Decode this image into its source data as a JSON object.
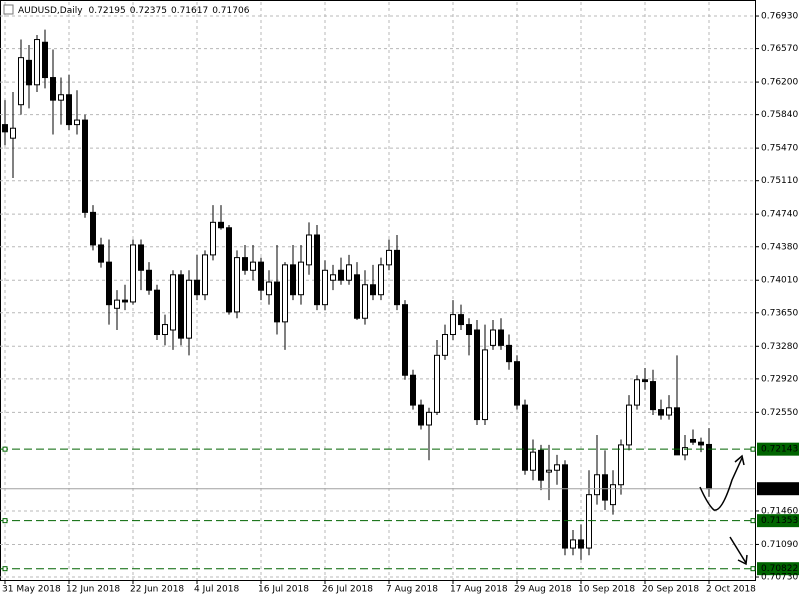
{
  "chart_data": {
    "type": "candlestick",
    "title": "AUDUSD,Daily",
    "categories": [
      "31 May 2018",
      null,
      null,
      null,
      null,
      null,
      null,
      null,
      "12 Jun 2018",
      null,
      null,
      null,
      null,
      null,
      null,
      null,
      "22 Jun 2018",
      null,
      null,
      null,
      null,
      null,
      null,
      null,
      "4 Jul 2018",
      null,
      null,
      null,
      null,
      null,
      null,
      null,
      "16 Jul 2018",
      null,
      null,
      null,
      null,
      null,
      null,
      null,
      "26 Jul 2018",
      null,
      null,
      null,
      null,
      null,
      null,
      null,
      "7 Aug 2018",
      null,
      null,
      null,
      null,
      null,
      null,
      null,
      "17 Aug 2018",
      null,
      null,
      null,
      null,
      null,
      null,
      null,
      "29 Aug 2018",
      null,
      null,
      null,
      null,
      null,
      null,
      null,
      "10 Sep 2018",
      null,
      null,
      null,
      null,
      null,
      null,
      null,
      "20 Sep 2018",
      null,
      null,
      null,
      null,
      null,
      null,
      null,
      "2 Oct 2018"
    ],
    "open": [
      0.7573,
      0.7558,
      0.7595,
      0.7644,
      0.7617,
      0.7664,
      0.7625,
      0.76,
      0.7606,
      0.7573,
      0.7578,
      0.7476,
      0.744,
      0.7421,
      0.737,
      0.7379,
      0.7377,
      0.744,
      0.7412,
      0.739,
      0.7341,
      0.7346,
      0.7407,
      0.7337,
      0.7401,
      0.7385,
      0.7429,
      0.7465,
      0.7459,
      0.7366,
      0.7426,
      0.7412,
      0.7421,
      0.7385,
      0.7399,
      0.7355,
      0.7418,
      0.7385,
      0.7418,
      0.7451,
      0.7374,
      0.7401,
      0.7412,
      0.7401,
      0.7407,
      0.7359,
      0.7396,
      0.7385,
      0.7418,
      0.7434,
      0.7374,
      0.7296,
      0.7263,
      0.7241,
      0.7255,
      0.7318,
      0.7341,
      0.7363,
      0.7352,
      0.7346,
      0.7247,
      0.7329,
      0.7346,
      0.7329,
      0.7311,
      0.7263,
      0.7191,
      0.7213,
      0.7189,
      0.7191,
      0.7197,
      0.7105,
      0.7114,
      0.7105,
      0.7164,
      0.7186,
      0.7153,
      0.7175,
      0.7219,
      0.7263,
      0.7291,
      0.7289,
      0.7258,
      0.7252,
      0.726,
      0.7208,
      0.7225,
      0.7222,
      0.72195
    ],
    "high": [
      0.76,
      0.7609,
      0.7667,
      0.7661,
      0.7672,
      0.7678,
      0.7656,
      0.7625,
      0.7628,
      0.7611,
      0.7584,
      0.7484,
      0.7448,
      0.7446,
      0.739,
      0.7396,
      0.7446,
      0.7446,
      0.7421,
      0.7396,
      0.7363,
      0.7412,
      0.7412,
      0.7412,
      0.7429,
      0.7434,
      0.7484,
      0.7484,
      0.7462,
      0.7434,
      0.744,
      0.744,
      0.7426,
      0.7412,
      0.744,
      0.7421,
      0.744,
      0.744,
      0.7465,
      0.7462,
      0.7423,
      0.7418,
      0.7426,
      0.7429,
      0.7421,
      0.7412,
      0.7418,
      0.7426,
      0.7446,
      0.7451,
      0.7379,
      0.7302,
      0.7269,
      0.726,
      0.7335,
      0.7352,
      0.7379,
      0.7374,
      0.7359,
      0.7357,
      0.7352,
      0.7357,
      0.7359,
      0.7341,
      0.7318,
      0.7269,
      0.7225,
      0.7219,
      0.7219,
      0.7208,
      0.7202,
      0.7125,
      0.7131,
      0.7191,
      0.723,
      0.7213,
      0.7191,
      0.7225,
      0.7274,
      0.7296,
      0.7304,
      0.7302,
      0.7269,
      0.7274,
      0.7318,
      0.723,
      0.7236,
      0.7227,
      0.72375
    ],
    "low": [
      0.755,
      0.7514,
      0.7584,
      0.7591,
      0.7609,
      0.7613,
      0.7562,
      0.7573,
      0.7567,
      0.7562,
      0.747,
      0.7434,
      0.7415,
      0.7352,
      0.7346,
      0.7368,
      0.7374,
      0.739,
      0.7385,
      0.7335,
      0.7329,
      0.7324,
      0.7329,
      0.7318,
      0.7379,
      0.7379,
      0.7423,
      0.7457,
      0.7363,
      0.7359,
      0.7407,
      0.7401,
      0.7379,
      0.7374,
      0.7341,
      0.7324,
      0.7379,
      0.7374,
      0.7407,
      0.7368,
      0.7368,
      0.739,
      0.7396,
      0.7396,
      0.7357,
      0.7352,
      0.7379,
      0.7379,
      0.7412,
      0.7368,
      0.7291,
      0.7258,
      0.7236,
      0.7202,
      0.7252,
      0.7313,
      0.7335,
      0.7346,
      0.7318,
      0.7241,
      0.7241,
      0.7324,
      0.7324,
      0.7302,
      0.7258,
      0.7186,
      0.718,
      0.7169,
      0.7158,
      0.7175,
      0.7097,
      0.7097,
      0.7092,
      0.7097,
      0.7153,
      0.7147,
      0.7142,
      0.7164,
      0.7213,
      0.7258,
      0.728,
      0.7252,
      0.7247,
      0.7247,
      0.7208,
      0.7202,
      0.7219,
      0.7211,
      0.71617
    ],
    "close": [
      0.7565,
      0.7569,
      0.7647,
      0.7617,
      0.7667,
      0.7625,
      0.76,
      0.7606,
      0.7573,
      0.7578,
      0.7476,
      0.744,
      0.7421,
      0.7374,
      0.7379,
      0.7377,
      0.744,
      0.7412,
      0.739,
      0.7341,
      0.7352,
      0.7407,
      0.7337,
      0.7401,
      0.7385,
      0.7429,
      0.7465,
      0.7459,
      0.7366,
      0.7426,
      0.7412,
      0.7421,
      0.739,
      0.7399,
      0.7355,
      0.7418,
      0.7385,
      0.7421,
      0.7451,
      0.7374,
      0.7412,
      0.7407,
      0.7401,
      0.7418,
      0.7359,
      0.7396,
      0.7385,
      0.7418,
      0.7434,
      0.7374,
      0.7296,
      0.7263,
      0.7241,
      0.7255,
      0.7318,
      0.7341,
      0.7363,
      0.7352,
      0.7341,
      0.7247,
      0.7324,
      0.7346,
      0.7329,
      0.7311,
      0.7263,
      0.7191,
      0.7211,
      0.718,
      0.7191,
      0.7197,
      0.7105,
      0.7114,
      0.7105,
      0.7164,
      0.7186,
      0.7158,
      0.7175,
      0.7219,
      0.7263,
      0.7291,
      0.7289,
      0.7258,
      0.7252,
      0.726,
      0.7208,
      0.7216,
      0.7222,
      0.7219,
      0.71706
    ],
    "ylim": [
      0.70697,
      0.77085
    ],
    "yticks": [
      {
        "value": 0.7693,
        "label": "0.76930"
      },
      {
        "value": 0.7657,
        "label": "0.76570"
      },
      {
        "value": 0.762,
        "label": "0.76200"
      },
      {
        "value": 0.7584,
        "label": "0.75840"
      },
      {
        "value": 0.7547,
        "label": "0.75470"
      },
      {
        "value": 0.7511,
        "label": "0.75110"
      },
      {
        "value": 0.7474,
        "label": "0.74740"
      },
      {
        "value": 0.7438,
        "label": "0.74380"
      },
      {
        "value": 0.7401,
        "label": "0.74010"
      },
      {
        "value": 0.7365,
        "label": "0.73650"
      },
      {
        "value": 0.7328,
        "label": "0.73280"
      },
      {
        "value": 0.7292,
        "label": "0.72920"
      },
      {
        "value": 0.7255,
        "label": "0.72550"
      },
      {
        "value": 0.7146,
        "label": "0.71460"
      },
      {
        "value": 0.7109,
        "label": "0.71090"
      },
      {
        "value": 0.7073,
        "label": "0.70730"
      }
    ],
    "levels": [
      0.72143,
      0.71353,
      0.70822
    ],
    "level_color": "#006400",
    "up_color": "#ffffff",
    "down_color": "#000000",
    "grid": true
  }
}
